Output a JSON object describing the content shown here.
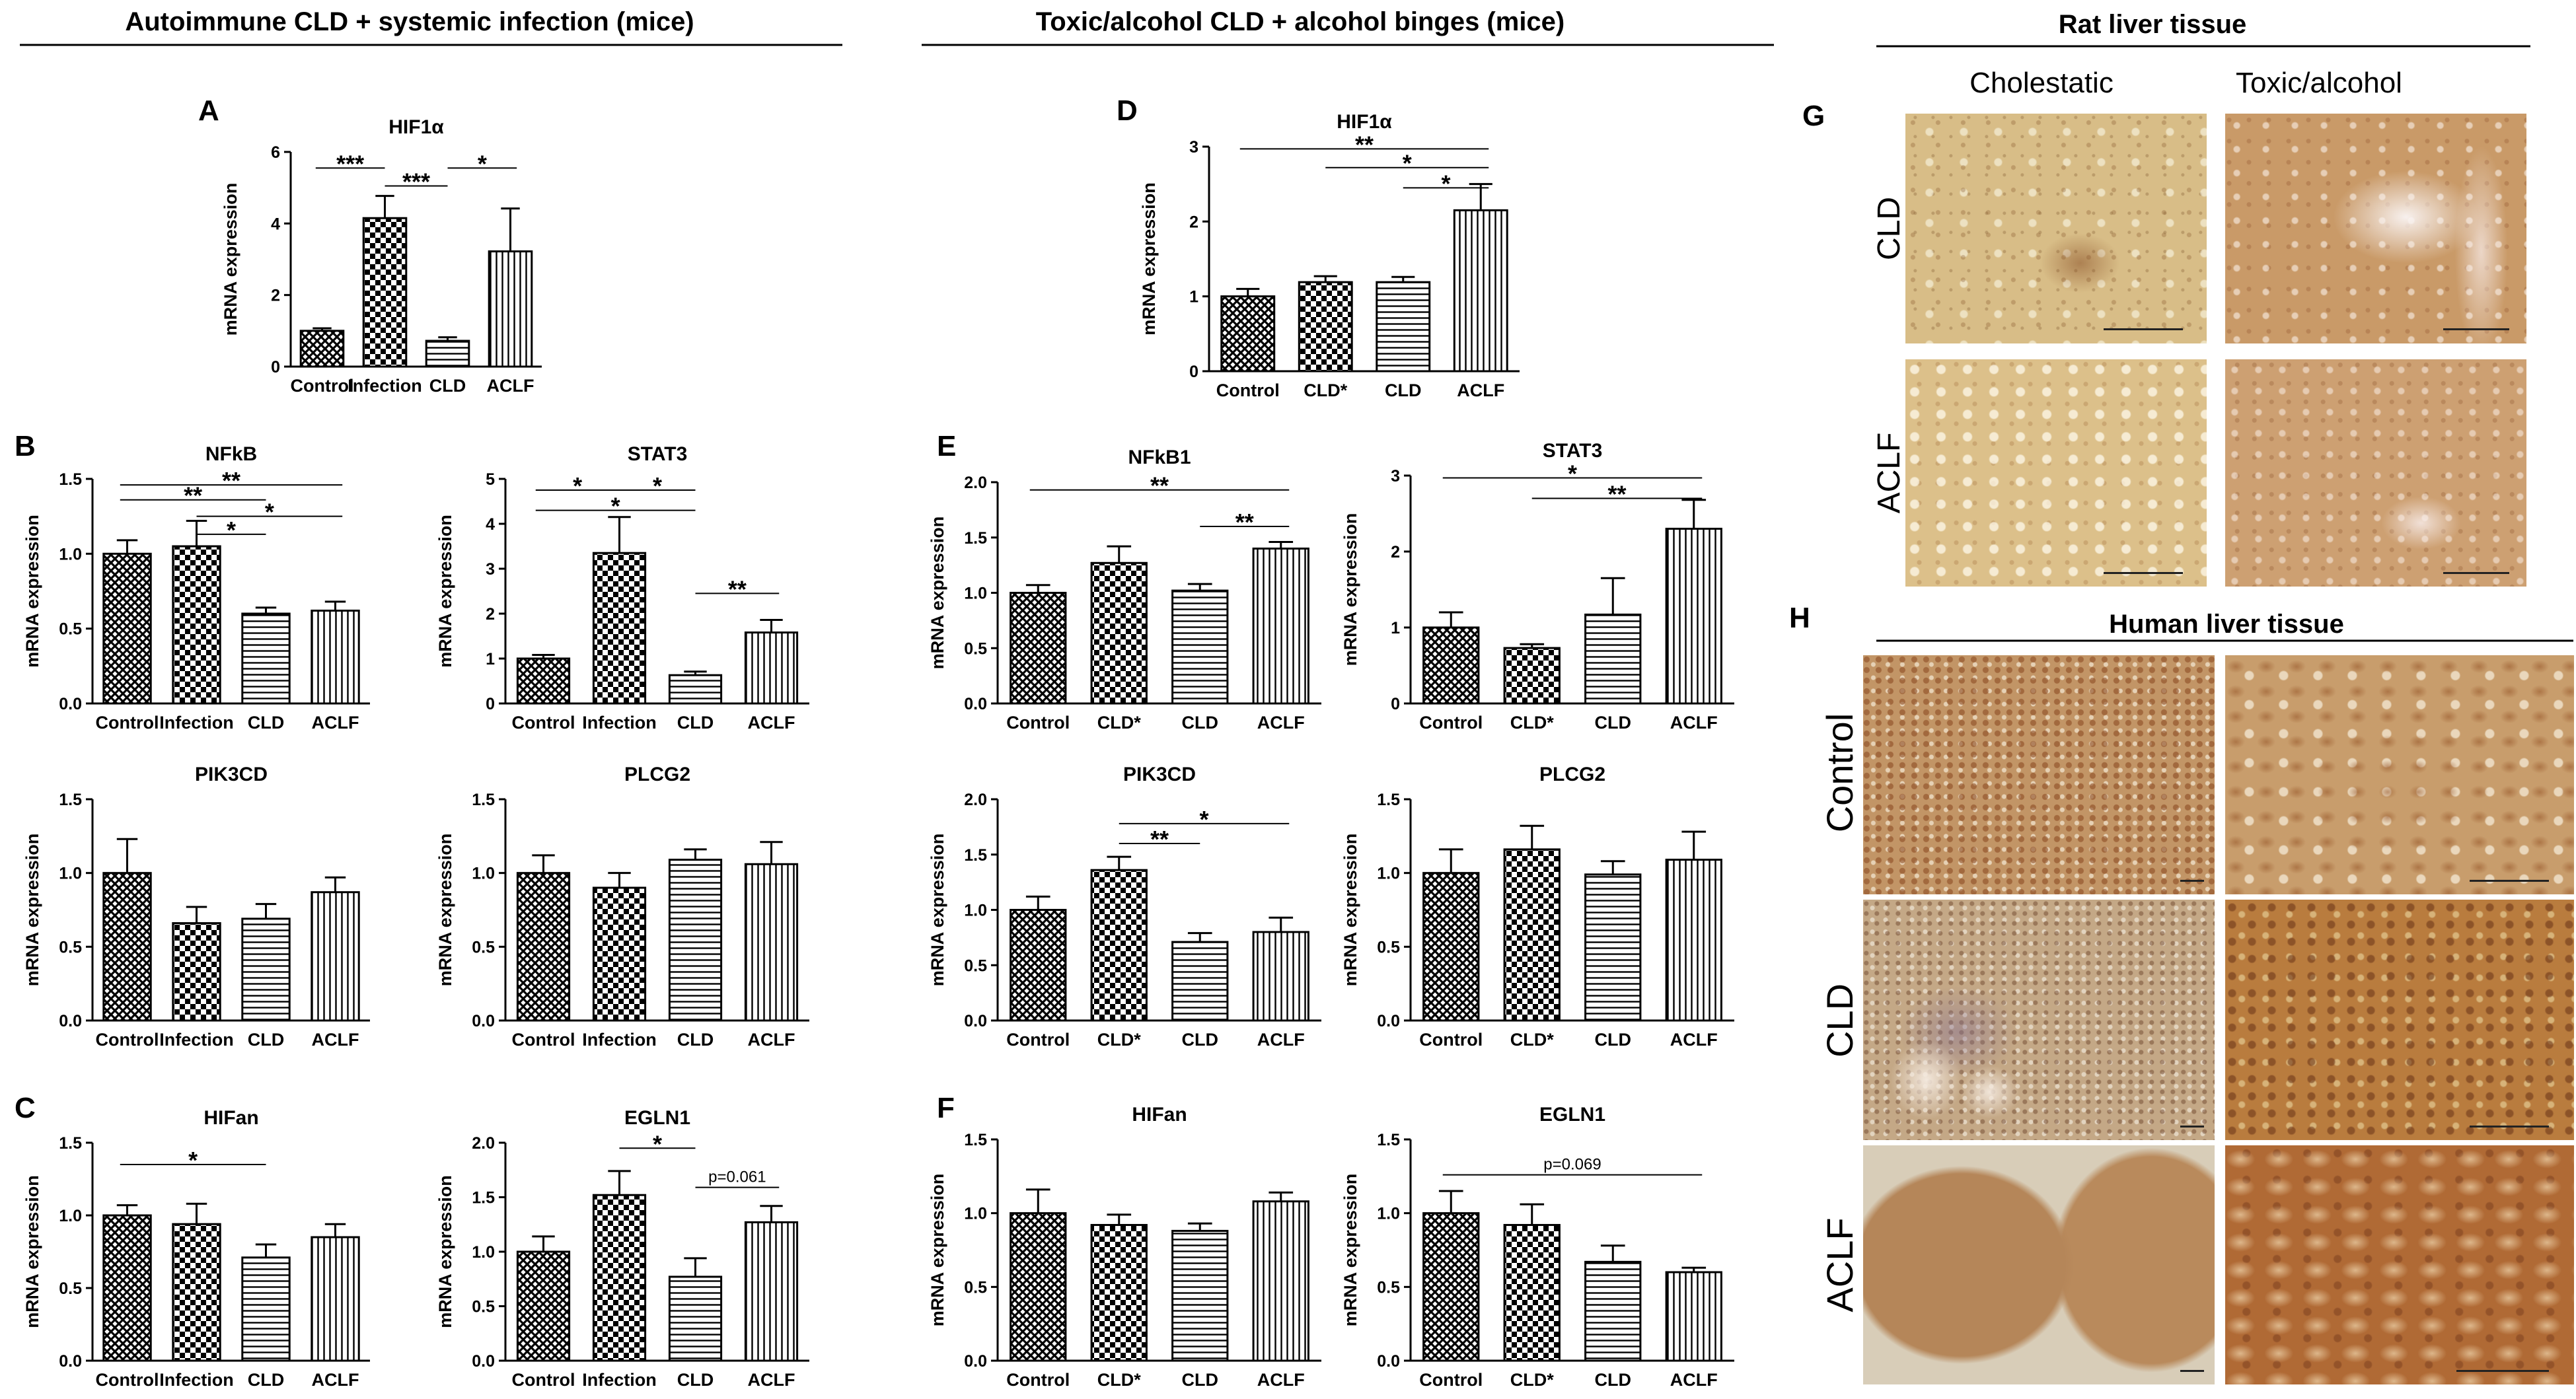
{
  "sections": {
    "mice_autoimmune": "Autoimmune CLD + systemic infection (mice)",
    "mice_toxic": "Toxic/alcohol CLD + alcohol binges (mice)",
    "rat": "Rat liver tissue",
    "human": "Human liver tissue"
  },
  "panel_letters": {
    "A": "A",
    "B": "B",
    "C": "C",
    "D": "D",
    "E": "E",
    "F": "F",
    "G": "G",
    "H": "H"
  },
  "tissue": {
    "rat_columns": [
      "Cholestatic",
      "Toxic/alcohol"
    ],
    "rat_rows": [
      "CLD",
      "ACLF"
    ],
    "human_rows": [
      "Control",
      "CLD",
      "ACLF"
    ],
    "colors": {
      "light": "#d9bf8c",
      "mid": "#c49a66",
      "dark": "#a8643a",
      "pale": "#e6d9b8"
    }
  },
  "chart_data": [
    {
      "id": "A",
      "type": "bar",
      "title": "HIF1α",
      "ylabel": "mRNA expression",
      "categories": [
        "Control",
        "Infection",
        "CLD",
        "ACLF"
      ],
      "values": [
        1.0,
        4.15,
        0.72,
        3.22
      ],
      "errors": [
        0.07,
        0.62,
        0.1,
        1.2
      ],
      "ylim": [
        0,
        6
      ],
      "yticks": [
        "0",
        "2",
        "4",
        "6"
      ],
      "patterns": [
        "cross",
        "check",
        "hline",
        "vline"
      ],
      "annotations": [
        {
          "from": 0,
          "to": 1,
          "label": "***",
          "y": 5.55
        },
        {
          "from": 1,
          "to": 2,
          "label": "***",
          "y": 5.05
        },
        {
          "from": 2,
          "to": 3,
          "label": "*",
          "y": 5.55
        }
      ]
    },
    {
      "id": "B1",
      "type": "bar",
      "title": "NFkB",
      "ylabel": "mRNA expression",
      "categories": [
        "Control",
        "Infection",
        "CLD",
        "ACLF"
      ],
      "values": [
        1.0,
        1.05,
        0.6,
        0.62
      ],
      "errors": [
        0.09,
        0.17,
        0.04,
        0.06
      ],
      "ylim": [
        0,
        1.5
      ],
      "yticks": [
        "0.0",
        "0.5",
        "1.0",
        "1.5"
      ],
      "patterns": [
        "cross",
        "check",
        "hline",
        "vline"
      ],
      "annotations": [
        {
          "from": 0,
          "to": 3,
          "label": "**",
          "y": 1.46
        },
        {
          "from": 0,
          "to": 2,
          "label": "**",
          "y": 1.36
        },
        {
          "from": 1,
          "to": 3,
          "label": "*",
          "y": 1.25
        },
        {
          "from": 1,
          "to": 2,
          "label": "*",
          "y": 1.13
        }
      ]
    },
    {
      "id": "B2",
      "type": "bar",
      "title": "STAT3",
      "ylabel": "mRNA expression",
      "categories": [
        "Control",
        "Infection",
        "CLD",
        "ACLF"
      ],
      "values": [
        1.0,
        3.35,
        0.63,
        1.58
      ],
      "errors": [
        0.08,
        0.8,
        0.08,
        0.28
      ],
      "ylim": [
        0,
        5
      ],
      "yticks": [
        "0",
        "1",
        "2",
        "3",
        "4",
        "5"
      ],
      "patterns": [
        "cross",
        "check",
        "hline",
        "vline"
      ],
      "annotations": [
        {
          "from": 0,
          "to": 1,
          "label": "*",
          "y": 4.75
        },
        {
          "from": 1,
          "to": 2,
          "label": "*",
          "y": 4.75
        },
        {
          "from": 0,
          "to": 2,
          "label": "*",
          "y": 4.3
        },
        {
          "from": 2,
          "to": 3,
          "label": "**",
          "y": 2.45
        }
      ]
    },
    {
      "id": "B3",
      "type": "bar",
      "title": "PIK3CD",
      "ylabel": "mRNA expression",
      "categories": [
        "Control",
        "Infection",
        "CLD",
        "ACLF"
      ],
      "values": [
        1.0,
        0.66,
        0.69,
        0.87
      ],
      "errors": [
        0.23,
        0.11,
        0.1,
        0.1
      ],
      "ylim": [
        0,
        1.5
      ],
      "yticks": [
        "0.0",
        "0.5",
        "1.0",
        "1.5"
      ],
      "patterns": [
        "cross",
        "check",
        "hline",
        "vline"
      ],
      "annotations": []
    },
    {
      "id": "B4",
      "type": "bar",
      "title": "PLCG2",
      "ylabel": "mRNA expression",
      "categories": [
        "Control",
        "Infection",
        "CLD",
        "ACLF"
      ],
      "values": [
        1.0,
        0.9,
        1.09,
        1.06
      ],
      "errors": [
        0.12,
        0.1,
        0.07,
        0.15
      ],
      "ylim": [
        0,
        1.5
      ],
      "yticks": [
        "0.0",
        "0.5",
        "1.0",
        "1.5"
      ],
      "patterns": [
        "cross",
        "check",
        "hline",
        "vline"
      ],
      "annotations": []
    },
    {
      "id": "C1",
      "type": "bar",
      "title": "HIFan",
      "ylabel": "mRNA expression",
      "categories": [
        "Control",
        "Infection",
        "CLD",
        "ACLF"
      ],
      "values": [
        1.0,
        0.94,
        0.71,
        0.85
      ],
      "errors": [
        0.07,
        0.14,
        0.09,
        0.09
      ],
      "ylim": [
        0,
        1.5
      ],
      "yticks": [
        "0.0",
        "0.5",
        "1.0",
        "1.5"
      ],
      "patterns": [
        "cross",
        "check",
        "hline",
        "vline"
      ],
      "annotations": [
        {
          "from": 0,
          "to": 2,
          "label": "*",
          "y": 1.35
        }
      ]
    },
    {
      "id": "C2",
      "type": "bar",
      "title": "EGLN1",
      "ylabel": "mRNA expression",
      "categories": [
        "Control",
        "Infection",
        "CLD",
        "ACLF"
      ],
      "values": [
        1.0,
        1.52,
        0.77,
        1.27
      ],
      "errors": [
        0.14,
        0.22,
        0.17,
        0.15
      ],
      "ylim": [
        0,
        2.0
      ],
      "yticks": [
        "0.0",
        "0.5",
        "1.0",
        "1.5",
        "2.0"
      ],
      "patterns": [
        "cross",
        "check",
        "hline",
        "vline"
      ],
      "annotations": [
        {
          "from": 1,
          "to": 2,
          "label": "*",
          "y": 1.95
        },
        {
          "from": 2,
          "to": 3,
          "label": "p=0.061",
          "y": 1.59
        }
      ]
    },
    {
      "id": "D",
      "type": "bar",
      "title": "HIF1α",
      "ylabel": "mRNA expression",
      "categories": [
        "Control",
        "CLD*",
        "CLD",
        "ACLF"
      ],
      "values": [
        1.0,
        1.19,
        1.19,
        2.15
      ],
      "errors": [
        0.1,
        0.08,
        0.07,
        0.35
      ],
      "ylim": [
        0,
        3
      ],
      "yticks": [
        "0",
        "1",
        "2",
        "3"
      ],
      "patterns": [
        "cross",
        "check",
        "hline",
        "vline"
      ],
      "annotations": [
        {
          "from": 0,
          "to": 3,
          "label": "**",
          "y": 2.97
        },
        {
          "from": 1,
          "to": 3,
          "label": "*",
          "y": 2.72
        },
        {
          "from": 2,
          "to": 3,
          "label": "*",
          "y": 2.45
        }
      ]
    },
    {
      "id": "E1",
      "type": "bar",
      "title": "NFkB1",
      "ylabel": "mRNA expression",
      "categories": [
        "Control",
        "CLD*",
        "CLD",
        "ACLF"
      ],
      "values": [
        1.0,
        1.27,
        1.02,
        1.4
      ],
      "errors": [
        0.07,
        0.15,
        0.06,
        0.06
      ],
      "ylim": [
        0,
        2.0
      ],
      "yticks": [
        "0.0",
        "0.5",
        "1.0",
        "1.5",
        "2.0"
      ],
      "patterns": [
        "cross",
        "check",
        "hline",
        "vline"
      ],
      "annotations": [
        {
          "from": 0,
          "to": 3,
          "label": "**",
          "y": 1.93
        },
        {
          "from": 2,
          "to": 3,
          "label": "**",
          "y": 1.6
        }
      ]
    },
    {
      "id": "E2",
      "type": "bar",
      "title": "STAT3",
      "ylabel": "mRNA expression",
      "categories": [
        "Control",
        "CLD*",
        "CLD",
        "ACLF"
      ],
      "values": [
        1.0,
        0.73,
        1.17,
        2.3
      ],
      "errors": [
        0.2,
        0.05,
        0.48,
        0.38
      ],
      "ylim": [
        0,
        3
      ],
      "yticks": [
        "0",
        "1",
        "2",
        "3"
      ],
      "patterns": [
        "cross",
        "check",
        "hline",
        "vline"
      ],
      "annotations": [
        {
          "from": 0,
          "to": 3,
          "label": "*",
          "y": 2.97
        },
        {
          "from": 1,
          "to": 3,
          "label": "**",
          "y": 2.7
        }
      ]
    },
    {
      "id": "E3",
      "type": "bar",
      "title": "PIK3CD",
      "ylabel": "mRNA expression",
      "categories": [
        "Control",
        "CLD*",
        "CLD",
        "ACLF"
      ],
      "values": [
        1.0,
        1.36,
        0.71,
        0.8
      ],
      "errors": [
        0.12,
        0.12,
        0.08,
        0.13
      ],
      "ylim": [
        0,
        2.0
      ],
      "yticks": [
        "0.0",
        "0.5",
        "1.0",
        "1.5",
        "2.0"
      ],
      "patterns": [
        "cross",
        "check",
        "hline",
        "vline"
      ],
      "annotations": [
        {
          "from": 1,
          "to": 3,
          "label": "*",
          "y": 1.78
        },
        {
          "from": 1,
          "to": 2,
          "label": "**",
          "y": 1.6
        }
      ]
    },
    {
      "id": "E4",
      "type": "bar",
      "title": "PLCG2",
      "ylabel": "mRNA expression",
      "categories": [
        "Control",
        "CLD*",
        "CLD",
        "ACLF"
      ],
      "values": [
        1.0,
        1.16,
        0.99,
        1.09
      ],
      "errors": [
        0.16,
        0.16,
        0.09,
        0.19
      ],
      "ylim": [
        0,
        1.5
      ],
      "yticks": [
        "0.0",
        "0.5",
        "1.0",
        "1.5"
      ],
      "patterns": [
        "cross",
        "check",
        "hline",
        "vline"
      ],
      "annotations": []
    },
    {
      "id": "F1",
      "type": "bar",
      "title": "HIFan",
      "ylabel": "mRNA expression",
      "categories": [
        "Control",
        "CLD*",
        "CLD",
        "ACLF"
      ],
      "values": [
        1.0,
        0.92,
        0.88,
        1.08
      ],
      "errors": [
        0.16,
        0.07,
        0.05,
        0.06
      ],
      "ylim": [
        0,
        1.5
      ],
      "yticks": [
        "0.0",
        "0.5",
        "1.0",
        "1.5"
      ],
      "patterns": [
        "cross",
        "check",
        "hline",
        "vline"
      ],
      "annotations": []
    },
    {
      "id": "F2",
      "type": "bar",
      "title": "EGLN1",
      "ylabel": "mRNA expression",
      "categories": [
        "Control",
        "CLD*",
        "CLD",
        "ACLF"
      ],
      "values": [
        1.0,
        0.92,
        0.67,
        0.6
      ],
      "errors": [
        0.15,
        0.14,
        0.11,
        0.03
      ],
      "ylim": [
        0,
        1.5
      ],
      "yticks": [
        "0.0",
        "0.5",
        "1.0",
        "1.5"
      ],
      "patterns": [
        "cross",
        "check",
        "hline",
        "vline"
      ],
      "annotations": [
        {
          "from": 0,
          "to": 3,
          "label": "p=0.069",
          "y": 1.26
        }
      ]
    }
  ]
}
